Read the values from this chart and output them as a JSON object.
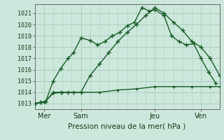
{
  "title": "",
  "xlabel": "Pression niveau de la mer( hPa )",
  "ylabel": "",
  "background_color": "#cce8dc",
  "grid_color": "#aacfbe",
  "line_color": "#1a5c28",
  "xlim": [
    0,
    10
  ],
  "ylim": [
    1012.5,
    1021.8
  ],
  "yticks": [
    1013,
    1014,
    1015,
    1016,
    1017,
    1018,
    1019,
    1020,
    1021
  ],
  "xtick_labels": [
    "Mer",
    "Sam",
    "Jeu",
    "Ven"
  ],
  "xtick_positions": [
    0.5,
    2.5,
    6.5,
    9.0
  ],
  "line1_x": [
    0.0,
    0.3,
    0.6,
    1.0,
    1.4,
    1.8,
    2.1,
    2.5,
    3.0,
    3.4,
    3.8,
    4.2,
    4.6,
    5.0,
    5.4,
    5.8,
    6.2,
    6.5,
    7.0,
    7.4,
    7.8,
    8.2,
    8.6,
    9.0,
    9.4,
    9.8
  ],
  "line1_y": [
    1013.0,
    1013.1,
    1013.2,
    1015.0,
    1016.1,
    1017.0,
    1017.5,
    1018.8,
    1018.6,
    1018.2,
    1018.5,
    1019.0,
    1019.3,
    1019.9,
    1020.2,
    1021.5,
    1021.2,
    1021.3,
    1020.8,
    1019.0,
    1018.5,
    1018.2,
    1018.3,
    1017.0,
    1015.8,
    1014.8
  ],
  "line2_x": [
    0.0,
    0.3,
    0.6,
    1.0,
    1.4,
    1.8,
    2.1,
    2.5,
    3.0,
    3.5,
    4.0,
    4.5,
    5.0,
    5.5,
    6.0,
    6.5,
    7.0,
    7.5,
    8.0,
    8.5,
    9.0,
    9.5,
    10.0
  ],
  "line2_y": [
    1013.0,
    1013.1,
    1013.2,
    1014.0,
    1014.0,
    1014.0,
    1014.0,
    1014.0,
    1015.5,
    1016.5,
    1017.5,
    1018.5,
    1019.3,
    1020.0,
    1020.8,
    1021.5,
    1021.0,
    1020.2,
    1019.5,
    1018.5,
    1018.0,
    1017.0,
    1015.5
  ],
  "line3_x": [
    0.0,
    0.3,
    0.5,
    1.0,
    1.5,
    2.5,
    3.5,
    4.5,
    5.5,
    6.5,
    7.5,
    8.5,
    9.5,
    10.0
  ],
  "line3_y": [
    1013.0,
    1013.1,
    1013.1,
    1013.9,
    1014.0,
    1014.0,
    1014.0,
    1014.2,
    1014.3,
    1014.5,
    1014.5,
    1014.5,
    1014.5,
    1014.5
  ]
}
